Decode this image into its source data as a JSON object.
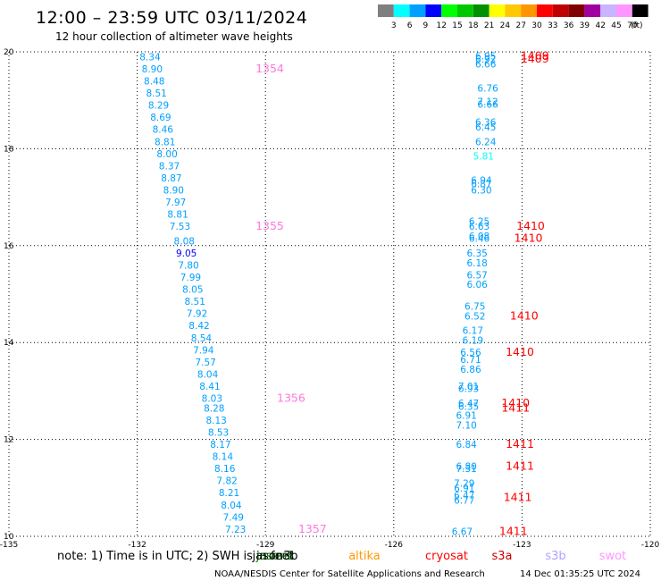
{
  "header": {
    "title": "12:00 – 23:59 UTC 03/11/2024",
    "subtitle": "12 hour collection of altimeter wave heights"
  },
  "colorbar": {
    "unit": "(ft)",
    "bins": [
      {
        "label": "3",
        "color": "#7f7f7f"
      },
      {
        "label": "6",
        "color": "#00ffff"
      },
      {
        "label": "9",
        "color": "#00a0ff"
      },
      {
        "label": "12",
        "color": "#0000ff"
      },
      {
        "label": "15",
        "color": "#00ff00"
      },
      {
        "label": "18",
        "color": "#00c800"
      },
      {
        "label": "21",
        "color": "#009000"
      },
      {
        "label": "24",
        "color": "#ffff00"
      },
      {
        "label": "27",
        "color": "#ffc800"
      },
      {
        "label": "30",
        "color": "#ff9600"
      },
      {
        "label": "33",
        "color": "#ff0000"
      },
      {
        "label": "36",
        "color": "#c00000"
      },
      {
        "label": "39",
        "color": "#800000"
      },
      {
        "label": "42",
        "color": "#a000a0"
      },
      {
        "label": "45",
        "color": "#c8b4ff"
      },
      {
        "label": "70",
        "color": "#ff96ff"
      },
      {
        "label": "",
        "color": "#000000"
      }
    ]
  },
  "footer": {
    "note": "note:  1) Time is in UTC;  2) SWH is in feet",
    "credit": "NOAA/NESDIS Center for Satellite Applications and Research",
    "timestamp": "14 Dec 01:35:25 UTC 2024",
    "missions": [
      {
        "name": "jason3",
        "color": "#008000"
      },
      {
        "name": "jason3b",
        "color": "#000000"
      },
      {
        "name": "altika",
        "color": "#ff9900"
      },
      {
        "name": "cryosat",
        "color": "#ff0000"
      },
      {
        "name": "s3a",
        "color": "#cc0000"
      },
      {
        "name": "s3b",
        "color": "#b4a0ff"
      },
      {
        "name": "swot",
        "color": "#ff96ff"
      }
    ]
  },
  "chart_data": {
    "type": "scatter",
    "title": "12:00 – 23:59 UTC 03/11/2024",
    "subtitle": "12 hour collection of altimeter wave heights",
    "xlim": [
      -135,
      -120
    ],
    "ylim": [
      10,
      20
    ],
    "xticks": [
      "-135",
      "-132",
      "-129",
      "-126",
      "-123",
      "-120"
    ],
    "yticks": [
      "20",
      "18",
      "16",
      "14",
      "12",
      "10"
    ],
    "grid": true,
    "points": [
      {
        "x": -131.7,
        "y": 19.9,
        "v": "8.34",
        "c": "#00a0ff"
      },
      {
        "x": -131.65,
        "y": 19.65,
        "v": "8.90",
        "c": "#00a0ff"
      },
      {
        "x": -131.6,
        "y": 19.4,
        "v": "8.48",
        "c": "#00a0ff"
      },
      {
        "x": -131.55,
        "y": 19.15,
        "v": "8.51",
        "c": "#00a0ff"
      },
      {
        "x": -131.5,
        "y": 18.9,
        "v": "8.29",
        "c": "#00a0ff"
      },
      {
        "x": -131.45,
        "y": 18.65,
        "v": "8.69",
        "c": "#00a0ff"
      },
      {
        "x": -131.4,
        "y": 18.4,
        "v": "8.46",
        "c": "#00a0ff"
      },
      {
        "x": -131.35,
        "y": 18.15,
        "v": "8.81",
        "c": "#00a0ff"
      },
      {
        "x": -131.3,
        "y": 17.9,
        "v": "8.00",
        "c": "#00a0ff"
      },
      {
        "x": -131.25,
        "y": 17.65,
        "v": "8.37",
        "c": "#00a0ff"
      },
      {
        "x": -131.2,
        "y": 17.4,
        "v": "8.87",
        "c": "#00a0ff"
      },
      {
        "x": -131.15,
        "y": 17.15,
        "v": "8.90",
        "c": "#00a0ff"
      },
      {
        "x": -131.1,
        "y": 16.9,
        "v": "7.97",
        "c": "#00a0ff"
      },
      {
        "x": -131.05,
        "y": 16.65,
        "v": "8.81",
        "c": "#00a0ff"
      },
      {
        "x": -131.0,
        "y": 16.4,
        "v": "7.53",
        "c": "#00a0ff"
      },
      {
        "x": -130.9,
        "y": 16.1,
        "v": "8.08",
        "c": "#00a0ff"
      },
      {
        "x": -130.85,
        "y": 15.85,
        "v": "9.05",
        "c": "#0000ff"
      },
      {
        "x": -130.8,
        "y": 15.6,
        "v": "7.80",
        "c": "#00a0ff"
      },
      {
        "x": -130.75,
        "y": 15.35,
        "v": "7.99",
        "c": "#00a0ff"
      },
      {
        "x": -130.7,
        "y": 15.1,
        "v": "8.05",
        "c": "#00a0ff"
      },
      {
        "x": -130.65,
        "y": 14.85,
        "v": "8.51",
        "c": "#00a0ff"
      },
      {
        "x": -130.6,
        "y": 14.6,
        "v": "7.92",
        "c": "#00a0ff"
      },
      {
        "x": -130.55,
        "y": 14.35,
        "v": "8.42",
        "c": "#00a0ff"
      },
      {
        "x": -130.5,
        "y": 14.1,
        "v": "8.54",
        "c": "#00a0ff"
      },
      {
        "x": -130.45,
        "y": 13.85,
        "v": "7.94",
        "c": "#00a0ff"
      },
      {
        "x": -130.4,
        "y": 13.6,
        "v": "7.57",
        "c": "#00a0ff"
      },
      {
        "x": -130.35,
        "y": 13.35,
        "v": "8.04",
        "c": "#00a0ff"
      },
      {
        "x": -130.3,
        "y": 13.1,
        "v": "8.41",
        "c": "#00a0ff"
      },
      {
        "x": -130.25,
        "y": 12.85,
        "v": "8.03",
        "c": "#00a0ff"
      },
      {
        "x": -130.2,
        "y": 12.65,
        "v": "8.28",
        "c": "#00a0ff"
      },
      {
        "x": -130.15,
        "y": 12.4,
        "v": "8.13",
        "c": "#00a0ff"
      },
      {
        "x": -130.1,
        "y": 12.15,
        "v": "8.53",
        "c": "#00a0ff"
      },
      {
        "x": -130.05,
        "y": 11.9,
        "v": "8.17",
        "c": "#00a0ff"
      },
      {
        "x": -130.0,
        "y": 11.65,
        "v": "8.14",
        "c": "#00a0ff"
      },
      {
        "x": -129.95,
        "y": 11.4,
        "v": "8.16",
        "c": "#00a0ff"
      },
      {
        "x": -129.9,
        "y": 11.15,
        "v": "7.82",
        "c": "#00a0ff"
      },
      {
        "x": -129.85,
        "y": 10.9,
        "v": "8.21",
        "c": "#00a0ff"
      },
      {
        "x": -129.8,
        "y": 10.65,
        "v": "8.04",
        "c": "#00a0ff"
      },
      {
        "x": -129.75,
        "y": 10.4,
        "v": "7.49",
        "c": "#00a0ff"
      },
      {
        "x": -129.7,
        "y": 10.15,
        "v": "7.23",
        "c": "#00a0ff"
      },
      {
        "x": -123.85,
        "y": 19.92,
        "v": "6.95",
        "c": "#00a0ff"
      },
      {
        "x": -123.85,
        "y": 19.85,
        "v": "6.92",
        "c": "#00a0ff"
      },
      {
        "x": -123.85,
        "y": 19.75,
        "v": "6.66",
        "c": "#00a0ff"
      },
      {
        "x": -123.8,
        "y": 19.25,
        "v": "6.76",
        "c": "#00a0ff"
      },
      {
        "x": -123.8,
        "y": 18.98,
        "v": "7.12",
        "c": "#00a0ff"
      },
      {
        "x": -123.8,
        "y": 18.92,
        "v": "6.66",
        "c": "#00a0ff"
      },
      {
        "x": -123.85,
        "y": 18.55,
        "v": "6.36",
        "c": "#00a0ff"
      },
      {
        "x": -123.85,
        "y": 18.45,
        "v": "6.45",
        "c": "#00a0ff"
      },
      {
        "x": -123.85,
        "y": 18.15,
        "v": "6.24",
        "c": "#00a0ff"
      },
      {
        "x": -123.9,
        "y": 17.85,
        "v": "5.81",
        "c": "#00ffff"
      },
      {
        "x": -123.95,
        "y": 17.35,
        "v": "6.94",
        "c": "#00a0ff"
      },
      {
        "x": -123.95,
        "y": 17.28,
        "v": "6.87",
        "c": "#00a0ff"
      },
      {
        "x": -123.95,
        "y": 17.15,
        "v": "6.30",
        "c": "#00a0ff"
      },
      {
        "x": -124.0,
        "y": 16.5,
        "v": "6.25",
        "c": "#00a0ff"
      },
      {
        "x": -124.0,
        "y": 16.4,
        "v": "6.63",
        "c": "#00a0ff"
      },
      {
        "x": -124.0,
        "y": 16.2,
        "v": "6.08",
        "c": "#00a0ff"
      },
      {
        "x": -124.0,
        "y": 16.15,
        "v": "6.46",
        "c": "#00a0ff"
      },
      {
        "x": -124.05,
        "y": 15.85,
        "v": "6.35",
        "c": "#00a0ff"
      },
      {
        "x": -124.05,
        "y": 15.65,
        "v": "6.18",
        "c": "#00a0ff"
      },
      {
        "x": -124.05,
        "y": 15.4,
        "v": "6.57",
        "c": "#00a0ff"
      },
      {
        "x": -124.05,
        "y": 15.2,
        "v": "6.06",
        "c": "#00a0ff"
      },
      {
        "x": -124.1,
        "y": 14.75,
        "v": "6.75",
        "c": "#00a0ff"
      },
      {
        "x": -124.1,
        "y": 14.55,
        "v": "6.52",
        "c": "#00a0ff"
      },
      {
        "x": -124.15,
        "y": 14.25,
        "v": "6.17",
        "c": "#00a0ff"
      },
      {
        "x": -124.15,
        "y": 14.05,
        "v": "6.19",
        "c": "#00a0ff"
      },
      {
        "x": -124.2,
        "y": 13.8,
        "v": "6.56",
        "c": "#00a0ff"
      },
      {
        "x": -124.2,
        "y": 13.65,
        "v": "6.71",
        "c": "#00a0ff"
      },
      {
        "x": -124.2,
        "y": 13.45,
        "v": "6.86",
        "c": "#00a0ff"
      },
      {
        "x": -124.25,
        "y": 13.1,
        "v": "7.01",
        "c": "#00a0ff"
      },
      {
        "x": -124.25,
        "y": 13.05,
        "v": "6.93",
        "c": "#00a0ff"
      },
      {
        "x": -124.25,
        "y": 12.75,
        "v": "6.47",
        "c": "#00a0ff"
      },
      {
        "x": -124.25,
        "y": 12.68,
        "v": "6.35",
        "c": "#00a0ff"
      },
      {
        "x": -124.3,
        "y": 12.5,
        "v": "6.91",
        "c": "#00a0ff"
      },
      {
        "x": -124.3,
        "y": 12.3,
        "v": "7.10",
        "c": "#00a0ff"
      },
      {
        "x": -124.3,
        "y": 11.9,
        "v": "6.84",
        "c": "#00a0ff"
      },
      {
        "x": -124.3,
        "y": 11.45,
        "v": "6.80",
        "c": "#00a0ff"
      },
      {
        "x": -124.3,
        "y": 11.4,
        "v": "7.31",
        "c": "#00a0ff"
      },
      {
        "x": -124.35,
        "y": 11.1,
        "v": "7.29",
        "c": "#00a0ff"
      },
      {
        "x": -124.35,
        "y": 11.0,
        "v": "6.91",
        "c": "#00a0ff"
      },
      {
        "x": -124.35,
        "y": 10.85,
        "v": "6.47",
        "c": "#00a0ff"
      },
      {
        "x": -124.35,
        "y": 10.75,
        "v": "6.77",
        "c": "#00a0ff"
      },
      {
        "x": -124.4,
        "y": 10.1,
        "v": "6.67",
        "c": "#00a0ff"
      }
    ],
    "passes": [
      {
        "label": "1354",
        "x": -128.9,
        "y": 19.65,
        "c": "#ff77dd"
      },
      {
        "label": "1355",
        "x": -128.9,
        "y": 16.4,
        "c": "#ff77dd"
      },
      {
        "label": "1356",
        "x": -128.4,
        "y": 12.85,
        "c": "#ff77dd"
      },
      {
        "label": "1357",
        "x": -127.9,
        "y": 10.15,
        "c": "#ff77dd"
      },
      {
        "label": "1409",
        "x": -122.7,
        "y": 19.92,
        "c": "#ff0000"
      },
      {
        "label": "1409",
        "x": -122.7,
        "y": 19.85,
        "c": "#ff0000"
      },
      {
        "label": "1410",
        "x": -122.8,
        "y": 16.4,
        "c": "#ff0000"
      },
      {
        "label": "1410",
        "x": -122.85,
        "y": 16.15,
        "c": "#ff0000"
      },
      {
        "label": "1410",
        "x": -122.95,
        "y": 14.55,
        "c": "#ff0000"
      },
      {
        "label": "1410",
        "x": -123.05,
        "y": 13.8,
        "c": "#ff0000"
      },
      {
        "label": "1410",
        "x": -123.15,
        "y": 12.75,
        "c": "#ff0000"
      },
      {
        "label": "1411",
        "x": -123.15,
        "y": 12.65,
        "c": "#ff0000"
      },
      {
        "label": "1411",
        "x": -123.05,
        "y": 11.9,
        "c": "#ff0000"
      },
      {
        "label": "1411",
        "x": -123.05,
        "y": 11.45,
        "c": "#ff0000"
      },
      {
        "label": "1411",
        "x": -123.1,
        "y": 10.8,
        "c": "#ff0000"
      },
      {
        "label": "1411",
        "x": -123.2,
        "y": 10.1,
        "c": "#ff0000"
      }
    ]
  }
}
